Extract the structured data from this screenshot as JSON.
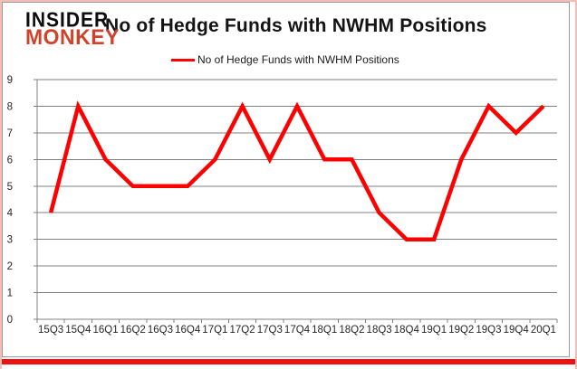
{
  "logo": {
    "line1": "INSIDER",
    "line2": "MONKEY"
  },
  "title": "No of Hedge Funds with NWHM Positions",
  "legend": {
    "label": "No of Hedge Funds with NWHM Positions",
    "color": "#ff0000"
  },
  "colors": {
    "line": "#ff0000",
    "grid": "#808080",
    "axis": "#808080",
    "axis_text": "#262626",
    "logo_accent": "#d0432a",
    "bottom_bar": "#ee1111"
  },
  "chart_data": {
    "type": "line",
    "categories": [
      "15Q3",
      "15Q4",
      "16Q1",
      "16Q2",
      "16Q3",
      "16Q4",
      "17Q1",
      "17Q2",
      "17Q3",
      "17Q4",
      "18Q1",
      "18Q2",
      "18Q3",
      "18Q4",
      "19Q1",
      "19Q2",
      "19Q3",
      "19Q4",
      "20Q1"
    ],
    "series": [
      {
        "name": "No of Hedge Funds with NWHM Positions",
        "values": [
          4,
          8,
          6,
          5,
          5,
          5,
          6,
          8,
          6,
          8,
          6,
          6,
          4,
          3,
          3,
          6,
          8,
          7,
          8
        ]
      }
    ],
    "title": "No of Hedge Funds with NWHM Positions",
    "xlabel": "",
    "ylabel": "",
    "ylim": [
      0,
      9
    ],
    "ytick_step": 1,
    "grid": true,
    "legend_position": "top-center"
  }
}
